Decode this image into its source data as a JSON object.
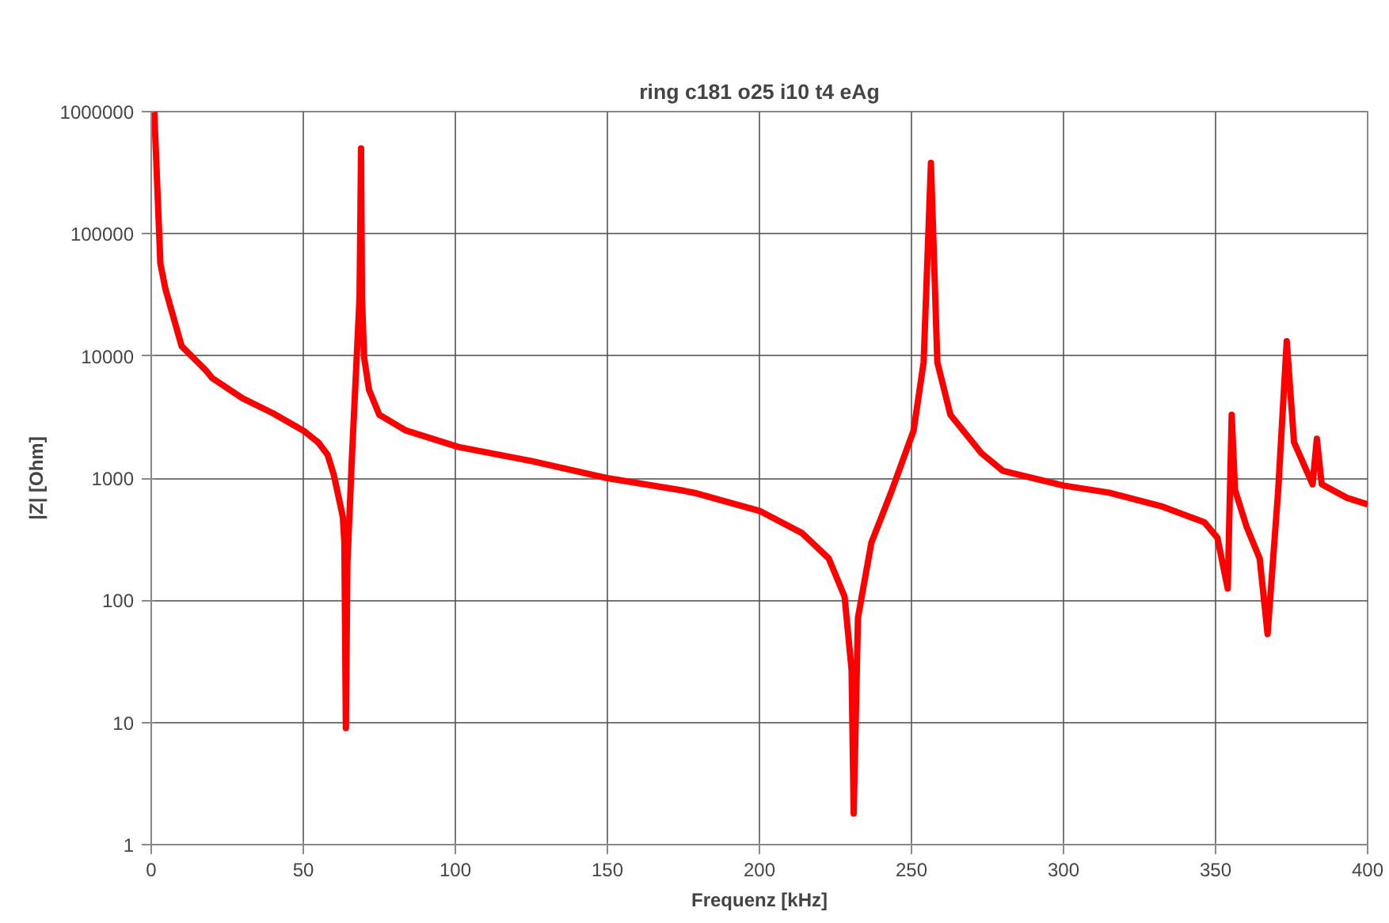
{
  "chart_data": {
    "type": "line",
    "title": "ring c181 o25 i10 t4 eAg",
    "xlabel": "Frequenz [kHz]",
    "ylabel": "|Z| [Ohm]",
    "log": "y",
    "grid": true,
    "line_style": "solid",
    "xlim": [
      0,
      400
    ],
    "xticks": [
      0,
      50,
      100,
      150,
      200,
      250,
      300,
      350,
      400
    ],
    "ylim": [
      1,
      1000000
    ],
    "yticks": [
      1,
      10,
      100,
      1000,
      10000,
      100000,
      1000000
    ],
    "series": [
      {
        "color": "#ff0000",
        "x": [
          1,
          3,
          4.7,
          10,
          18,
          20,
          30,
          40,
          50,
          55,
          58,
          60,
          62,
          63,
          63.5,
          64,
          64.5,
          66,
          68.5,
          69,
          69.3,
          70,
          71.6,
          75,
          83.8,
          101,
          125,
          150,
          175,
          179.4,
          200,
          214,
          222.8,
          228,
          230.3,
          231,
          232.4,
          236.8,
          243.6,
          250.7,
          254,
          256.4,
          258.5,
          262.8,
          273,
          280,
          300,
          315,
          332,
          346.3,
          350.6,
          354,
          355.3,
          356.4,
          360.2,
          364.5,
          367.1,
          370.6,
          373.4,
          375.8,
          381.9,
          383.3,
          384.9,
          393.2,
          400
        ],
        "values": [
          1000000,
          57000,
          35000,
          12000,
          7600,
          6600,
          4500,
          3400,
          2450,
          1950,
          1550,
          1070,
          630,
          480,
          300,
          9,
          200,
          1500,
          30000,
          500000,
          30000,
          9700,
          5300,
          3300,
          2450,
          1800,
          1380,
          1000,
          790,
          750,
          540,
          355,
          220,
          107,
          27,
          1.8,
          72,
          295,
          800,
          2450,
          8900,
          380000,
          8900,
          3300,
          1600,
          1150,
          870,
          760,
          590,
          436,
          325,
          125,
          3300,
          800,
          400,
          220,
          53,
          800,
          13200,
          1970,
          890,
          2100,
          890,
          690,
          610
        ]
      }
    ]
  }
}
